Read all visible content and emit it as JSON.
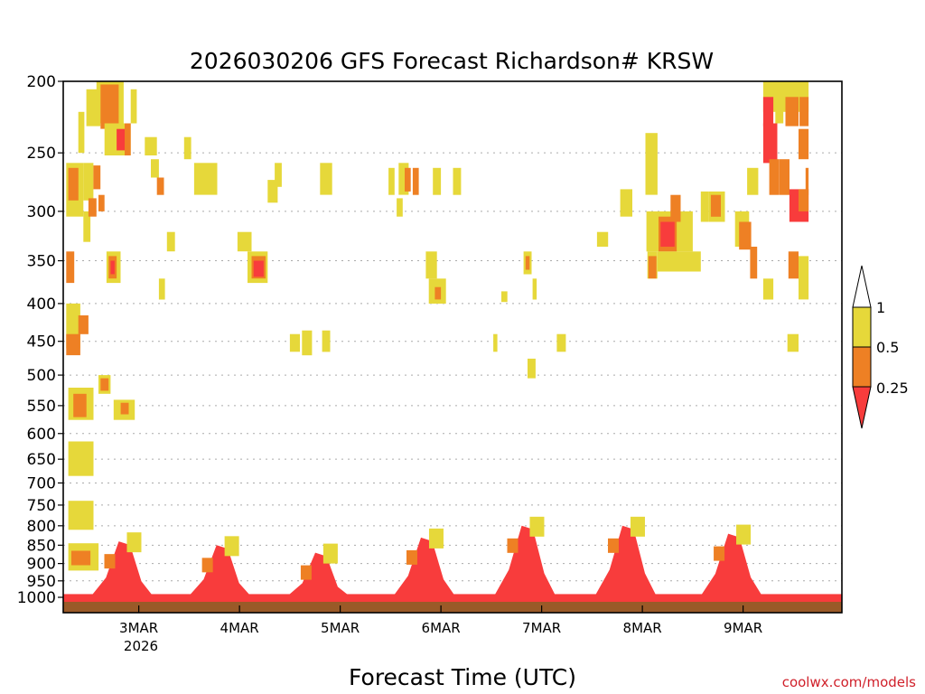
{
  "chart_data": {
    "type": "heatmap",
    "title": "2026030206 GFS Forecast Richardson# KRSW",
    "xlabel": "Forecast Time (UTC)",
    "ylabel": "",
    "y_axis": {
      "scale": "log",
      "inverted": true,
      "ylim": [
        1000,
        200
      ],
      "ticks": [
        200,
        250,
        300,
        350,
        400,
        450,
        500,
        550,
        600,
        650,
        700,
        750,
        800,
        850,
        900,
        950,
        1000
      ]
    },
    "x_axis": {
      "ticks": [
        "3MAR",
        "4MAR",
        "5MAR",
        "6MAR",
        "7MAR",
        "8MAR",
        "9MAR"
      ],
      "year_label": "2026"
    },
    "grid": "horizontal dotted at pressure ticks",
    "legend": {
      "placement": "right",
      "thresholds": [
        "1",
        "0.5",
        "0.25"
      ],
      "bins": [
        {
          "range": "> 1",
          "color": "#ffffff"
        },
        {
          "range": "0.5 - 1",
          "color": "#e6d83a"
        },
        {
          "range": "0.25 - 0.5",
          "color": "#ee8024"
        },
        {
          "range": "< 0.25",
          "color": "#f83c3c"
        }
      ]
    },
    "palette": {
      "yellow": "#e6d83a",
      "orange": "#ee8024",
      "red": "#f83c3c",
      "ground": "#9a5a28"
    },
    "ground_level_hpa": 1013,
    "surface_layer": {
      "top_hpa": 990,
      "bin": "red"
    },
    "boundary_layer_daily": [
      {
        "day": "3MAR",
        "peak_day": 2.85,
        "top_hpa": 840
      },
      {
        "day": "4MAR",
        "peak_day": 3.82,
        "top_hpa": 850
      },
      {
        "day": "5MAR",
        "peak_day": 4.8,
        "top_hpa": 870
      },
      {
        "day": "6MAR",
        "peak_day": 5.85,
        "top_hpa": 830
      },
      {
        "day": "7MAR",
        "peak_day": 6.85,
        "top_hpa": 800
      },
      {
        "day": "8MAR",
        "peak_day": 7.85,
        "top_hpa": 800
      },
      {
        "day": "9MAR",
        "peak_day": 8.9,
        "top_hpa": 820
      }
    ],
    "cells": [
      {
        "t": [
          2.3,
          2.55
        ],
        "p": [
          615,
          685
        ],
        "bin": "yellow"
      },
      {
        "t": [
          2.3,
          2.55
        ],
        "p": [
          740,
          810
        ],
        "bin": "yellow"
      },
      {
        "t": [
          2.3,
          2.6
        ],
        "p": [
          845,
          920
        ],
        "bin": "yellow"
      },
      {
        "t": [
          2.33,
          2.52
        ],
        "p": [
          865,
          905
        ],
        "bin": "orange"
      },
      {
        "t": [
          2.3,
          2.55
        ],
        "p": [
          520,
          575
        ],
        "bin": "yellow"
      },
      {
        "t": [
          2.35,
          2.48
        ],
        "p": [
          530,
          570
        ],
        "bin": "orange"
      },
      {
        "t": [
          2.28,
          2.42
        ],
        "p": [
          400,
          460
        ],
        "bin": "yellow"
      },
      {
        "t": [
          2.4,
          2.5
        ],
        "p": [
          415,
          440
        ],
        "bin": "orange"
      },
      {
        "t": [
          2.28,
          2.42
        ],
        "p": [
          440,
          470
        ],
        "bin": "orange"
      },
      {
        "t": [
          2.6,
          2.72
        ],
        "p": [
          500,
          530
        ],
        "bin": "yellow"
      },
      {
        "t": [
          2.62,
          2.7
        ],
        "p": [
          505,
          525
        ],
        "bin": "orange"
      },
      {
        "t": [
          2.75,
          2.96
        ],
        "p": [
          540,
          575
        ],
        "bin": "yellow"
      },
      {
        "t": [
          2.82,
          2.9
        ],
        "p": [
          545,
          565
        ],
        "bin": "orange"
      },
      {
        "t": [
          2.28,
          2.36
        ],
        "p": [
          340,
          375
        ],
        "bin": "orange"
      },
      {
        "t": [
          2.68,
          2.82
        ],
        "p": [
          340,
          375
        ],
        "bin": "yellow"
      },
      {
        "t": [
          2.7,
          2.78
        ],
        "p": [
          345,
          370
        ],
        "bin": "orange"
      },
      {
        "t": [
          2.72,
          2.76
        ],
        "p": [
          350,
          365
        ],
        "bin": "red"
      },
      {
        "t": [
          2.45,
          2.52
        ],
        "p": [
          300,
          330
        ],
        "bin": "yellow"
      },
      {
        "t": [
          2.28,
          2.45
        ],
        "p": [
          258,
          305
        ],
        "bin": "yellow"
      },
      {
        "t": [
          2.3,
          2.4
        ],
        "p": [
          262,
          290
        ],
        "bin": "orange"
      },
      {
        "t": [
          2.45,
          2.55
        ],
        "p": [
          258,
          290
        ],
        "bin": "yellow"
      },
      {
        "t": [
          2.55,
          2.62
        ],
        "p": [
          260,
          280
        ],
        "bin": "orange"
      },
      {
        "t": [
          2.5,
          2.58
        ],
        "p": [
          288,
          305
        ],
        "bin": "orange"
      },
      {
        "t": [
          2.6,
          2.66
        ],
        "p": [
          285,
          300
        ],
        "bin": "orange"
      },
      {
        "t": [
          2.4,
          2.46
        ],
        "p": [
          220,
          250
        ],
        "bin": "yellow"
      },
      {
        "t": [
          2.48,
          2.62
        ],
        "p": [
          205,
          230
        ],
        "bin": "yellow"
      },
      {
        "t": [
          2.58,
          2.85
        ],
        "p": [
          200,
          228
        ],
        "bin": "yellow"
      },
      {
        "t": [
          2.62,
          2.8
        ],
        "p": [
          202,
          232
        ],
        "bin": "orange"
      },
      {
        "t": [
          2.66,
          2.92
        ],
        "p": [
          228,
          252
        ],
        "bin": "yellow"
      },
      {
        "t": [
          2.78,
          2.86
        ],
        "p": [
          232,
          248
        ],
        "bin": "red"
      },
      {
        "t": [
          2.86,
          2.92
        ],
        "p": [
          228,
          252
        ],
        "bin": "orange"
      },
      {
        "t": [
          2.92,
          2.98
        ],
        "p": [
          205,
          228
        ],
        "bin": "yellow"
      },
      {
        "t": [
          3.06,
          3.18
        ],
        "p": [
          238,
          252
        ],
        "bin": "yellow"
      },
      {
        "t": [
          3.12,
          3.2
        ],
        "p": [
          255,
          270
        ],
        "bin": "yellow"
      },
      {
        "t": [
          3.18,
          3.25
        ],
        "p": [
          270,
          285
        ],
        "bin": "orange"
      },
      {
        "t": [
          3.45,
          3.52
        ],
        "p": [
          238,
          255
        ],
        "bin": "yellow"
      },
      {
        "t": [
          3.55,
          3.78
        ],
        "p": [
          258,
          285
        ],
        "bin": "yellow"
      },
      {
        "t": [
          3.28,
          3.36
        ],
        "p": [
          320,
          340
        ],
        "bin": "yellow"
      },
      {
        "t": [
          3.2,
          3.26
        ],
        "p": [
          370,
          395
        ],
        "bin": "yellow"
      },
      {
        "t": [
          3.98,
          4.12
        ],
        "p": [
          320,
          340
        ],
        "bin": "yellow"
      },
      {
        "t": [
          4.08,
          4.28
        ],
        "p": [
          340,
          375
        ],
        "bin": "yellow"
      },
      {
        "t": [
          4.12,
          4.26
        ],
        "p": [
          345,
          370
        ],
        "bin": "orange"
      },
      {
        "t": [
          4.14,
          4.24
        ],
        "p": [
          350,
          368
        ],
        "bin": "red"
      },
      {
        "t": [
          4.28,
          4.38
        ],
        "p": [
          272,
          292
        ],
        "bin": "yellow"
      },
      {
        "t": [
          4.35,
          4.42
        ],
        "p": [
          258,
          278
        ],
        "bin": "yellow"
      },
      {
        "t": [
          4.5,
          4.6
        ],
        "p": [
          440,
          465
        ],
        "bin": "yellow"
      },
      {
        "t": [
          4.62,
          4.72
        ],
        "p": [
          435,
          470
        ],
        "bin": "yellow"
      },
      {
        "t": [
          4.82,
          4.9
        ],
        "p": [
          435,
          465
        ],
        "bin": "yellow"
      },
      {
        "t": [
          4.8,
          4.92
        ],
        "p": [
          258,
          285
        ],
        "bin": "yellow"
      },
      {
        "t": [
          5.48,
          5.54
        ],
        "p": [
          262,
          285
        ],
        "bin": "yellow"
      },
      {
        "t": [
          5.58,
          5.68
        ],
        "p": [
          258,
          285
        ],
        "bin": "yellow"
      },
      {
        "t": [
          5.64,
          5.7
        ],
        "p": [
          262,
          282
        ],
        "bin": "orange"
      },
      {
        "t": [
          5.72,
          5.78
        ],
        "p": [
          262,
          285
        ],
        "bin": "orange"
      },
      {
        "t": [
          5.56,
          5.62
        ],
        "p": [
          288,
          305
        ],
        "bin": "yellow"
      },
      {
        "t": [
          5.92,
          6.0
        ],
        "p": [
          262,
          285
        ],
        "bin": "yellow"
      },
      {
        "t": [
          6.12,
          6.2
        ],
        "p": [
          262,
          285
        ],
        "bin": "yellow"
      },
      {
        "t": [
          5.85,
          5.96
        ],
        "p": [
          340,
          370
        ],
        "bin": "yellow"
      },
      {
        "t": [
          5.88,
          6.05
        ],
        "p": [
          370,
          400
        ],
        "bin": "yellow"
      },
      {
        "t": [
          5.94,
          6.0
        ],
        "p": [
          380,
          395
        ],
        "bin": "orange"
      },
      {
        "t": [
          6.6,
          6.66
        ],
        "p": [
          385,
          398
        ],
        "bin": "yellow"
      },
      {
        "t": [
          6.82,
          6.9
        ],
        "p": [
          340,
          365
        ],
        "bin": "yellow"
      },
      {
        "t": [
          6.84,
          6.88
        ],
        "p": [
          345,
          360
        ],
        "bin": "orange"
      },
      {
        "t": [
          6.91,
          6.95
        ],
        "p": [
          370,
          395
        ],
        "bin": "yellow"
      },
      {
        "t": [
          6.52,
          6.56
        ],
        "p": [
          440,
          465
        ],
        "bin": "yellow"
      },
      {
        "t": [
          7.15,
          7.24
        ],
        "p": [
          440,
          465
        ],
        "bin": "yellow"
      },
      {
        "t": [
          6.86,
          6.94
        ],
        "p": [
          475,
          505
        ],
        "bin": "yellow"
      },
      {
        "t": [
          7.55,
          7.66
        ],
        "p": [
          320,
          335
        ],
        "bin": "yellow"
      },
      {
        "t": [
          7.78,
          7.9
        ],
        "p": [
          280,
          305
        ],
        "bin": "yellow"
      },
      {
        "t": [
          8.03,
          8.15
        ],
        "p": [
          235,
          285
        ],
        "bin": "yellow"
      },
      {
        "t": [
          8.04,
          8.5
        ],
        "p": [
          300,
          340
        ],
        "bin": "yellow"
      },
      {
        "t": [
          8.05,
          8.15
        ],
        "p": [
          340,
          370
        ],
        "bin": "yellow"
      },
      {
        "t": [
          8.06,
          8.14
        ],
        "p": [
          345,
          370
        ],
        "bin": "orange"
      },
      {
        "t": [
          8.15,
          8.58
        ],
        "p": [
          340,
          362
        ],
        "bin": "yellow"
      },
      {
        "t": [
          8.16,
          8.34
        ],
        "p": [
          305,
          340
        ],
        "bin": "orange"
      },
      {
        "t": [
          8.18,
          8.32
        ],
        "p": [
          310,
          335
        ],
        "bin": "red"
      },
      {
        "t": [
          8.28,
          8.38
        ],
        "p": [
          285,
          310
        ],
        "bin": "orange"
      },
      {
        "t": [
          8.58,
          8.66
        ],
        "p": [
          282,
          310
        ],
        "bin": "yellow"
      },
      {
        "t": [
          8.66,
          8.82
        ],
        "p": [
          282,
          310
        ],
        "bin": "yellow"
      },
      {
        "t": [
          8.68,
          8.78
        ],
        "p": [
          285,
          305
        ],
        "bin": "orange"
      },
      {
        "t": [
          8.92,
          9.06
        ],
        "p": [
          300,
          335
        ],
        "bin": "yellow"
      },
      {
        "t": [
          8.96,
          9.08
        ],
        "p": [
          310,
          338
        ],
        "bin": "orange"
      },
      {
        "t": [
          9.07,
          9.14
        ],
        "p": [
          335,
          370
        ],
        "bin": "orange"
      },
      {
        "t": [
          9.2,
          9.3
        ],
        "p": [
          370,
          395
        ],
        "bin": "yellow"
      },
      {
        "t": [
          9.45,
          9.55
        ],
        "p": [
          340,
          370
        ],
        "bin": "orange"
      },
      {
        "t": [
          9.55,
          9.65
        ],
        "p": [
          345,
          395
        ],
        "bin": "yellow"
      },
      {
        "t": [
          9.44,
          9.55
        ],
        "p": [
          440,
          465
        ],
        "bin": "yellow"
      },
      {
        "t": [
          9.04,
          9.15
        ],
        "p": [
          262,
          285
        ],
        "bin": "yellow"
      },
      {
        "t": [
          9.2,
          9.65
        ],
        "p": [
          200,
          220
        ],
        "bin": "yellow"
      },
      {
        "t": [
          9.2,
          9.3
        ],
        "p": [
          210,
          230
        ],
        "bin": "red"
      },
      {
        "t": [
          9.32,
          9.4
        ],
        "p": [
          210,
          228
        ],
        "bin": "yellow"
      },
      {
        "t": [
          9.42,
          9.55
        ],
        "p": [
          210,
          230
        ],
        "bin": "orange"
      },
      {
        "t": [
          9.56,
          9.65
        ],
        "p": [
          210,
          230
        ],
        "bin": "orange"
      },
      {
        "t": [
          9.2,
          9.34
        ],
        "p": [
          228,
          258
        ],
        "bin": "red"
      },
      {
        "t": [
          9.26,
          9.36
        ],
        "p": [
          255,
          285
        ],
        "bin": "orange"
      },
      {
        "t": [
          9.36,
          9.46
        ],
        "p": [
          255,
          285
        ],
        "bin": "orange"
      },
      {
        "t": [
          9.55,
          9.65
        ],
        "p": [
          232,
          255
        ],
        "bin": "orange"
      },
      {
        "t": [
          9.46,
          9.65
        ],
        "p": [
          280,
          310
        ],
        "bin": "red"
      },
      {
        "t": [
          9.55,
          9.65
        ],
        "p": [
          280,
          300
        ],
        "bin": "orange"
      },
      {
        "t": [
          9.62,
          9.65
        ],
        "p": [
          262,
          285
        ],
        "bin": "orange"
      }
    ]
  },
  "credit": "coolwx.com/models"
}
